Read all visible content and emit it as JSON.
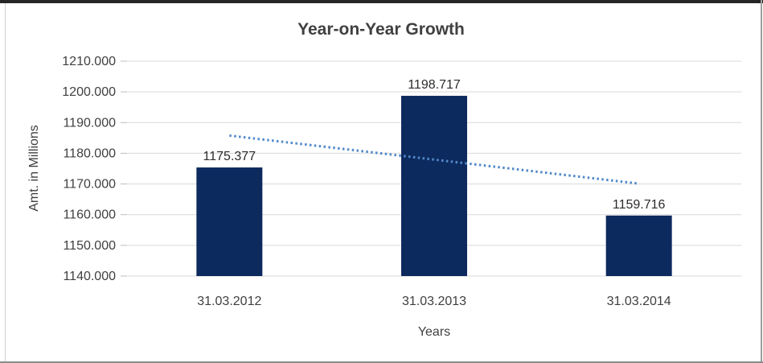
{
  "chart_data": {
    "type": "bar",
    "title": "Year-on-Year Growth",
    "xlabel": "Years",
    "ylabel": "Amt. in Millions",
    "categories": [
      "31.03.2012",
      "31.03.2013",
      "31.03.2014"
    ],
    "values": [
      1175.377,
      1198.717,
      1159.716
    ],
    "data_labels": [
      "1175.377",
      "1198.717",
      "1159.716"
    ],
    "ylim": [
      1140,
      1210
    ],
    "ytick_step": 10,
    "ytick_labels": [
      "1140.000",
      "1150.000",
      "1160.000",
      "1170.000",
      "1180.000",
      "1190.000",
      "1200.000",
      "1210.000"
    ],
    "grid": true,
    "legend": "none",
    "trendline": {
      "type": "linear",
      "style": "dotted"
    },
    "colors": {
      "bar": "#0d2a5e",
      "trendline": "#5189c9",
      "grid": "#d9d9d9",
      "tick": "#bfbfbf",
      "axis_text": "#3f3f3f",
      "data_label_text": "#2b2b2b",
      "title_text": "#404040"
    }
  }
}
